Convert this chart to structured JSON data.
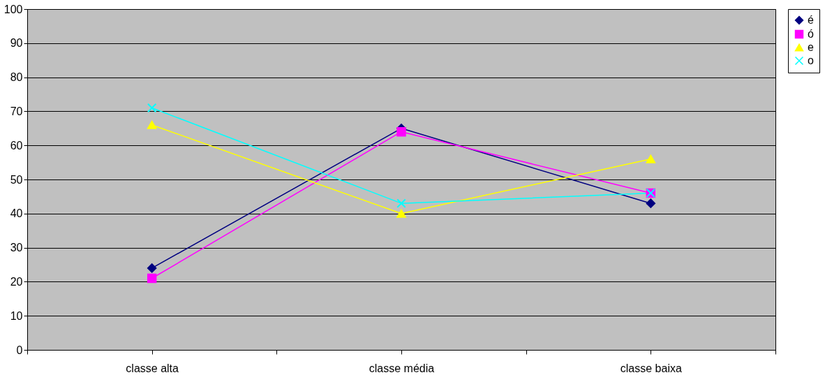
{
  "chart_data": {
    "type": "line",
    "categories": [
      "classe alta",
      "classe média",
      "classe baixa"
    ],
    "series": [
      {
        "name": "é",
        "color": "#000080",
        "marker": "diamond",
        "values": [
          24,
          65,
          43
        ]
      },
      {
        "name": "ó",
        "color": "#ff00ff",
        "marker": "square",
        "values": [
          21,
          64,
          46
        ]
      },
      {
        "name": "e",
        "color": "#ffff00",
        "marker": "triangle",
        "values": [
          66,
          40,
          56
        ]
      },
      {
        "name": "o",
        "color": "#00ffff",
        "marker": "cross",
        "values": [
          71,
          43,
          46
        ]
      }
    ],
    "ylim": [
      0,
      100
    ],
    "yticks": [
      0,
      10,
      20,
      30,
      40,
      50,
      60,
      70,
      80,
      90,
      100
    ],
    "grid": "y",
    "legend": "right",
    "line_style": "solid"
  }
}
